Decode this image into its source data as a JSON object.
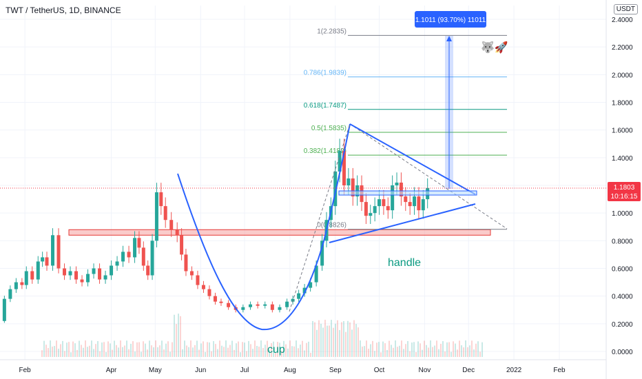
{
  "header": {
    "symbol_title": "TWT / TetherUS, 1D, BINANCE",
    "currency_badge": "USDT"
  },
  "colors": {
    "up": "#26a69a",
    "down": "#ef5350",
    "pattern_line": "#2962ff",
    "support_zone": "#f7a9a7",
    "support_border": "#e53935",
    "fib_0": "#787b86",
    "fib_382": "#4caf50",
    "fib_5": "#4caf50",
    "fib_618": "#089981",
    "fib_786": "#64b5f6",
    "fib_1": "#787b86",
    "price_tag": "#f23645",
    "measure": "#2962ff",
    "label_handle": "#089981",
    "label_cup": "#089981"
  },
  "chart_data": {
    "type": "candlestick",
    "title": "TWT / TetherUS, 1D, BINANCE",
    "ylabel": "USDT",
    "ylim": [
      -0.08,
      2.42
    ],
    "y_ticks": [
      "0.0000",
      "0.2000",
      "0.4000",
      "0.6000",
      "0.8000",
      "1.0000",
      "1.2000",
      "1.4000",
      "1.6000",
      "1.8000",
      "2.0000",
      "2.2000",
      "2.4000"
    ],
    "x_ticks": [
      "Feb",
      "Apr",
      "May",
      "Jun",
      "Jul",
      "Aug",
      "Sep",
      "Oct",
      "Nov",
      "Dec",
      "2022",
      "Feb"
    ],
    "x_range": [
      "2021-01-15",
      "2022-03-05"
    ],
    "x_tick_dates": [
      "2021-02-01",
      "2021-04-01",
      "2021-05-01",
      "2021-06-01",
      "2021-07-01",
      "2021-08-01",
      "2021-09-01",
      "2021-10-01",
      "2021-11-01",
      "2021-12-01",
      "2022-01-01",
      "2022-02-01"
    ],
    "current_price": "1.1803",
    "countdown": "10:16:15",
    "price_series": [
      [
        "2021-01-15",
        0.22
      ],
      [
        "2021-01-18",
        0.38
      ],
      [
        "2021-01-22",
        0.45
      ],
      [
        "2021-01-26",
        0.5
      ],
      [
        "2021-01-30",
        0.48
      ],
      [
        "2021-02-02",
        0.58
      ],
      [
        "2021-02-06",
        0.52
      ],
      [
        "2021-02-10",
        0.65
      ],
      [
        "2021-02-13",
        0.68
      ],
      [
        "2021-02-16",
        0.62
      ],
      [
        "2021-02-20",
        0.84
      ],
      [
        "2021-02-24",
        0.6
      ],
      [
        "2021-02-28",
        0.55
      ],
      [
        "2021-03-04",
        0.58
      ],
      [
        "2021-03-08",
        0.52
      ],
      [
        "2021-03-12",
        0.5
      ],
      [
        "2021-03-16",
        0.56
      ],
      [
        "2021-03-20",
        0.6
      ],
      [
        "2021-03-24",
        0.52
      ],
      [
        "2021-03-28",
        0.55
      ],
      [
        "2021-04-01",
        0.62
      ],
      [
        "2021-04-05",
        0.65
      ],
      [
        "2021-04-09",
        0.72
      ],
      [
        "2021-04-13",
        0.68
      ],
      [
        "2021-04-17",
        0.82
      ],
      [
        "2021-04-20",
        0.75
      ],
      [
        "2021-04-23",
        0.62
      ],
      [
        "2021-04-26",
        0.55
      ],
      [
        "2021-04-29",
        0.8
      ],
      [
        "2021-05-02",
        1.15
      ],
      [
        "2021-05-05",
        1.05
      ],
      [
        "2021-05-08",
        0.95
      ],
      [
        "2021-05-12",
        0.88
      ],
      [
        "2021-05-16",
        0.84
      ],
      [
        "2021-05-19",
        0.7
      ],
      [
        "2021-05-22",
        0.58
      ],
      [
        "2021-05-26",
        0.55
      ],
      [
        "2021-05-30",
        0.48
      ],
      [
        "2021-06-03",
        0.45
      ],
      [
        "2021-06-07",
        0.4
      ],
      [
        "2021-06-11",
        0.36
      ],
      [
        "2021-06-15",
        0.35
      ],
      [
        "2021-06-20",
        0.32
      ],
      [
        "2021-06-25",
        0.3
      ],
      [
        "2021-06-30",
        0.32
      ],
      [
        "2021-07-05",
        0.34
      ],
      [
        "2021-07-10",
        0.33
      ],
      [
        "2021-07-15",
        0.34
      ],
      [
        "2021-07-20",
        0.3
      ],
      [
        "2021-07-25",
        0.32
      ],
      [
        "2021-07-30",
        0.36
      ],
      [
        "2021-08-03",
        0.38
      ],
      [
        "2021-08-07",
        0.42
      ],
      [
        "2021-08-11",
        0.46
      ],
      [
        "2021-08-15",
        0.5
      ],
      [
        "2021-08-19",
        0.62
      ],
      [
        "2021-08-23",
        0.8
      ],
      [
        "2021-08-26",
        0.95
      ],
      [
        "2021-08-29",
        1.05
      ],
      [
        "2021-09-01",
        1.3
      ],
      [
        "2021-09-04",
        1.45
      ],
      [
        "2021-09-07",
        1.2
      ],
      [
        "2021-09-10",
        1.25
      ],
      [
        "2021-09-13",
        1.12
      ],
      [
        "2021-09-16",
        1.2
      ],
      [
        "2021-09-19",
        1.08
      ],
      [
        "2021-09-22",
        0.98
      ],
      [
        "2021-09-25",
        1.0
      ],
      [
        "2021-09-28",
        1.05
      ],
      [
        "2021-10-01",
        1.1
      ],
      [
        "2021-10-04",
        1.05
      ],
      [
        "2021-10-07",
        1.02
      ],
      [
        "2021-10-10",
        1.2
      ],
      [
        "2021-10-13",
        1.22
      ],
      [
        "2021-10-16",
        1.12
      ],
      [
        "2021-10-19",
        1.08
      ],
      [
        "2021-10-22",
        1.05
      ],
      [
        "2021-10-25",
        1.12
      ],
      [
        "2021-10-28",
        1.02
      ],
      [
        "2021-10-31",
        1.1
      ],
      [
        "2021-11-03",
        1.18
      ]
    ],
    "annotations": {
      "cup_label": "cup",
      "handle_label": "handle",
      "measure_label": "1.1011 (93.70%) 11011",
      "emoji": "🐺🚀"
    },
    "fib_levels": [
      {
        "label": "0(0.8826)",
        "value": 0.8826
      },
      {
        "label": "0.382(1.4182)",
        "value": 1.4182
      },
      {
        "label": "0.5(1.5835)",
        "value": 1.5835
      },
      {
        "label": "0.618(1.7487)",
        "value": 1.7487
      },
      {
        "label": "0.786(1.9839)",
        "value": 1.9839
      },
      {
        "label": "1(2.2835)",
        "value": 2.2835
      }
    ],
    "support_zone": [
      0.84,
      0.88
    ],
    "breakout_zone": [
      1.13,
      1.16
    ]
  }
}
